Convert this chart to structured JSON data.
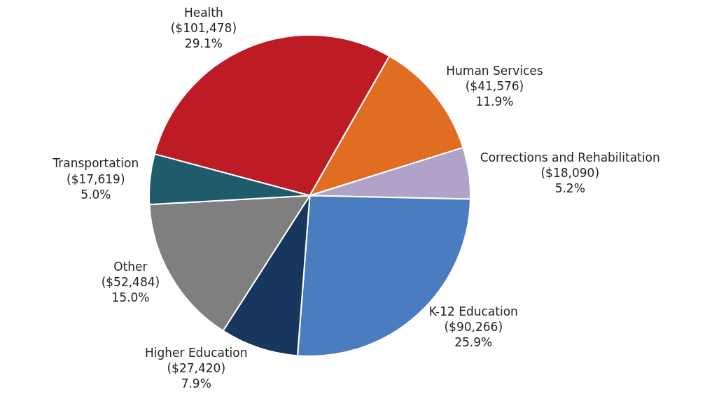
{
  "chart_data": {
    "type": "pie",
    "categories": [
      "Health",
      "Human Services",
      "Corrections and Rehabilitation",
      "K-12 Education",
      "Higher Education",
      "Other",
      "Transportation"
    ],
    "values": [
      101478,
      41576,
      18090,
      90266,
      27420,
      52484,
      17619
    ],
    "value_labels": [
      "($101,478)\n29.1%",
      "($41,576)\n11.9%",
      "($18,090)\n5.2%",
      "($90,266)\n25.9%",
      "($27,420)\n7.9%",
      "($52,484)\n15.0%",
      "($17,619)\n5.0%"
    ],
    "colors": [
      "#be1c24",
      "#e06d22",
      "#b0a2c9",
      "#4a7dbf",
      "#17375e",
      "#7f7f7f",
      "#1f5b6b"
    ],
    "legend": false
  }
}
